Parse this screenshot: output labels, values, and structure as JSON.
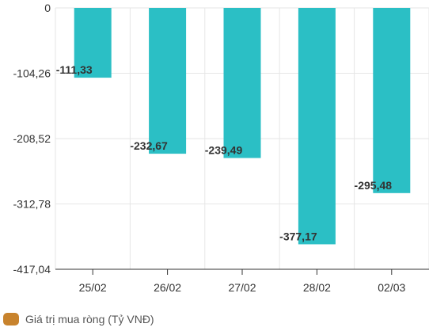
{
  "chart_data": {
    "type": "bar",
    "categories": [
      "25/02",
      "26/02",
      "27/02",
      "28/02",
      "02/03"
    ],
    "series": [
      {
        "name": "Giá trị mua ròng (Tỷ VNĐ)",
        "values": [
          -111.33,
          -232.67,
          -239.49,
          -377.17,
          -295.48
        ],
        "labels": [
          "-111,33",
          "-232,67",
          "-239,49",
          "-377,17",
          "-295,48"
        ]
      }
    ],
    "y_ticks": [
      0,
      -104.26,
      -208.52,
      -312.78,
      -417.04
    ],
    "y_tick_labels": [
      "0",
      "-104,26",
      "-208,52",
      "-312,78",
      "-417,04"
    ],
    "ylim": [
      -417.04,
      0
    ],
    "grid": true,
    "legend_position": "bottom-left"
  },
  "colors": {
    "bar": "#2bbfc5",
    "legend_swatch": "#c8832d",
    "grid": "#e6e6e6",
    "axis": "#333333",
    "text": "#333333"
  }
}
